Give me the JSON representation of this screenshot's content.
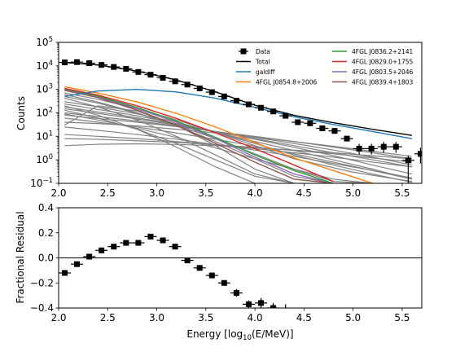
{
  "chart_data": [
    {
      "type": "line",
      "title": "",
      "ylabel": "Counts",
      "xlabel": "",
      "yscale": "log",
      "xlim": [
        2.0,
        5.7
      ],
      "ylim": [
        0.1,
        100000
      ],
      "xticks": [
        "2.0",
        "2.5",
        "3.0",
        "3.5",
        "4.0",
        "4.5",
        "5.0",
        "5.5"
      ],
      "xtick_values": [
        2.0,
        2.5,
        3.0,
        3.5,
        4.0,
        4.5,
        5.0,
        5.5
      ],
      "yticks": [
        {
          "value": 0.1,
          "base": "10",
          "exp": "−1"
        },
        {
          "value": 1,
          "base": "10",
          "exp": "0"
        },
        {
          "value": 10,
          "base": "10",
          "exp": "1"
        },
        {
          "value": 100,
          "base": "10",
          "exp": "2"
        },
        {
          "value": 1000,
          "base": "10",
          "exp": "3"
        },
        {
          "value": 10000,
          "base": "10",
          "exp": "4"
        },
        {
          "value": 100000,
          "base": "10",
          "exp": "5"
        }
      ],
      "legend_position": "top-right",
      "legend_columns": [
        [
          "Data",
          "Total",
          "galdiff",
          "4FGL J0854.8+2006"
        ],
        [
          "4FGL J0836.2+2141",
          "4FGL J0829.0+1755",
          "4FGL J0803.5+2046",
          "4FGL J0839.4+1803"
        ]
      ],
      "colors": {
        "Data": "#000000",
        "Total": "#000000",
        "galdiff": "#1f77b4",
        "4FGL J0854.8+2006": "#ff7f0e",
        "4FGL J0836.2+2141": "#2ca02c",
        "4FGL J0829.0+1755": "#d62728",
        "4FGL J0803.5+2046": "#9467bd",
        "4FGL J0839.4+1803": "#8c564b",
        "other_sources": "#808080"
      },
      "data_points": {
        "x": [
          2.062,
          2.187,
          2.312,
          2.437,
          2.562,
          2.687,
          2.812,
          2.937,
          3.062,
          3.187,
          3.312,
          3.437,
          3.562,
          3.687,
          3.812,
          3.937,
          4.062,
          4.187,
          4.312,
          4.437,
          4.562,
          4.687,
          4.812,
          4.937,
          5.062,
          5.187,
          5.312,
          5.437,
          5.562,
          5.687
        ],
        "y": [
          14000,
          14500,
          13000,
          11000,
          9000,
          7500,
          5500,
          4200,
          3100,
          2200,
          1600,
          1100,
          760,
          500,
          330,
          230,
          165,
          115,
          75,
          40,
          36,
          22,
          17,
          8,
          3.0,
          3.0,
          3.6,
          3.6,
          0.95,
          1.8
        ],
        "yerr_low": [
          0,
          0,
          0,
          0,
          0,
          0,
          0,
          0,
          0,
          0,
          0,
          0,
          0,
          0,
          0,
          0,
          0,
          0,
          0,
          0,
          0,
          0,
          0,
          0,
          1.3,
          1.3,
          1.6,
          1.6,
          0.85,
          1.1
        ],
        "yerr_high": [
          0,
          0,
          0,
          0,
          0,
          0,
          0,
          0,
          0,
          0,
          0,
          0,
          0,
          0,
          0,
          0,
          0,
          0,
          0,
          0,
          0,
          0,
          0,
          0,
          1.8,
          1.8,
          2.2,
          2.2,
          0.6,
          1.5
        ],
        "x_halfwidth": 0.0625
      },
      "curves": [
        {
          "name": "Total",
          "x": [
            2.06,
            2.4,
            2.8,
            3.2,
            3.6,
            4.0,
            4.4,
            4.8,
            5.2,
            5.6
          ],
          "y": [
            14000,
            11000,
            6000,
            2500,
            780,
            210,
            78,
            38,
            20,
            11
          ]
        },
        {
          "name": "galdiff",
          "x": [
            2.06,
            2.4,
            2.8,
            3.2,
            3.6,
            4.0,
            4.4,
            4.8,
            5.2,
            5.6
          ],
          "y": [
            500,
            850,
            1000,
            780,
            420,
            170,
            68,
            32,
            16,
            8
          ]
        },
        {
          "name": "4FGL J0854.8+2006",
          "x": [
            2.06,
            2.4,
            2.8,
            3.2,
            3.6,
            4.0,
            4.4,
            4.8,
            5.2
          ],
          "y": [
            1300,
            700,
            290,
            95,
            25,
            5.5,
            1.2,
            0.35,
            0.1
          ]
        },
        {
          "name": "4FGL J0836.2+2141",
          "x": [
            2.06,
            2.4,
            2.8,
            3.2,
            3.6,
            4.0,
            4.4,
            4.8
          ],
          "y": [
            1050,
            520,
            170,
            45,
            9,
            1.6,
            0.35,
            0.1
          ]
        },
        {
          "name": "4FGL J0829.0+1755",
          "x": [
            2.06,
            2.4,
            2.8,
            3.2,
            3.6,
            4.0,
            4.4,
            4.8
          ],
          "y": [
            1100,
            570,
            200,
            58,
            14,
            3,
            0.6,
            0.12
          ]
        },
        {
          "name": "4FGL J0803.5+2046",
          "x": [
            2.06,
            2.4,
            2.8,
            3.2,
            3.6,
            4.0,
            4.4,
            4.8
          ],
          "y": [
            1000,
            500,
            150,
            40,
            8,
            1.3,
            0.25,
            0.1
          ]
        },
        {
          "name": "4FGL J0839.4+1803",
          "x": [
            2.06,
            2.4,
            2.8,
            3.2,
            3.6,
            4.0,
            4.4,
            4.8
          ],
          "y": [
            900,
            450,
            130,
            30,
            5,
            0.8,
            0.15,
            0.1
          ]
        }
      ],
      "other_sources": [
        {
          "x": [
            2.06,
            2.4,
            2.8,
            3.2,
            3.6,
            4.0,
            4.4,
            5.0,
            5.6
          ],
          "y": [
            700,
            380,
            150,
            50,
            15,
            4,
            1.1,
            0.3,
            0.12
          ]
        },
        {
          "x": [
            2.06,
            2.4,
            2.8,
            3.2,
            3.6,
            4.0,
            4.4,
            4.8
          ],
          "y": [
            600,
            290,
            100,
            28,
            6,
            1.1,
            0.2,
            0.1
          ]
        },
        {
          "x": [
            2.06,
            2.4,
            2.8,
            3.2,
            3.6,
            4.0,
            4.4,
            4.8,
            5.2
          ],
          "y": [
            500,
            260,
            95,
            30,
            8,
            1.8,
            0.4,
            0.12,
            0.1
          ]
        },
        {
          "x": [
            2.06,
            2.4,
            2.8,
            3.2,
            3.6,
            4.0,
            4.4
          ],
          "y": [
            420,
            180,
            50,
            10,
            1.6,
            0.25,
            0.1
          ]
        },
        {
          "x": [
            2.06,
            2.4,
            2.8,
            3.2,
            3.6,
            4.0,
            4.4,
            4.8,
            5.2,
            5.6
          ],
          "y": [
            300,
            180,
            90,
            40,
            15,
            5,
            1.6,
            0.6,
            0.25,
            0.11
          ]
        },
        {
          "x": [
            2.06,
            2.4,
            2.8,
            3.2,
            3.6,
            4.0,
            4.4,
            4.8,
            5.2,
            5.6
          ],
          "y": [
            240,
            140,
            75,
            35,
            15,
            6,
            2.5,
            1.0,
            0.4,
            0.15
          ]
        },
        {
          "x": [
            2.06,
            2.4,
            2.8,
            3.2,
            3.6,
            4.0
          ],
          "y": [
            200,
            80,
            20,
            3.5,
            0.5,
            0.1
          ]
        },
        {
          "x": [
            2.06,
            2.4,
            2.8,
            3.2,
            3.6,
            4.0,
            4.4,
            4.8,
            5.2,
            5.6
          ],
          "y": [
            180,
            110,
            62,
            32,
            16,
            7.5,
            3.4,
            1.5,
            0.6,
            0.25
          ]
        },
        {
          "x": [
            2.06,
            2.4,
            2.8,
            3.2,
            3.6,
            4.0,
            4.4,
            4.8,
            5.2,
            5.6
          ],
          "y": [
            150,
            95,
            55,
            30,
            16,
            8,
            4,
            2,
            1,
            0.5
          ]
        },
        {
          "x": [
            2.06,
            2.4,
            2.8,
            3.2,
            3.6,
            4.0,
            4.4
          ],
          "y": [
            130,
            60,
            20,
            5,
            1,
            0.2,
            0.1
          ]
        },
        {
          "x": [
            2.06,
            2.4,
            2.8,
            3.2,
            3.6,
            4.0,
            4.4,
            4.8,
            5.2,
            5.6
          ],
          "y": [
            100,
            70,
            45,
            28,
            16,
            9,
            5,
            2.6,
            1.3,
            0.6
          ]
        },
        {
          "x": [
            2.06,
            2.4,
            2.8,
            3.2,
            3.6,
            4.0,
            4.4,
            4.8,
            5.2
          ],
          "y": [
            90,
            50,
            22,
            9,
            3.2,
            1.1,
            0.4,
            0.15,
            0.1
          ]
        },
        {
          "x": [
            2.06,
            2.4,
            2.8,
            3.2,
            3.6,
            4.0,
            4.4,
            4.8,
            5.2,
            5.6
          ],
          "y": [
            80,
            58,
            40,
            26,
            16,
            10,
            6,
            3.5,
            2,
            1.1
          ]
        },
        {
          "x": [
            2.06,
            2.4,
            2.8,
            3.2,
            3.6,
            4.0,
            4.4,
            4.8,
            5.2,
            5.6
          ],
          "y": [
            60,
            40,
            25,
            14,
            7.5,
            3.8,
            1.8,
            0.8,
            0.35,
            0.15
          ]
        },
        {
          "x": [
            2.06,
            2.4,
            2.8,
            3.2,
            3.6,
            4.0,
            4.4,
            4.8,
            5.2,
            5.6
          ],
          "y": [
            40,
            35,
            28,
            20,
            14,
            9.5,
            6,
            3.8,
            2.3,
            1.4
          ]
        },
        {
          "x": [
            2.06,
            2.4,
            2.8,
            3.2,
            3.6,
            4.0,
            4.4
          ],
          "y": [
            30,
            200,
            120,
            30,
            4,
            0.4,
            0.1
          ]
        },
        {
          "x": [
            2.06,
            2.4,
            2.8,
            3.2,
            3.6,
            4.0,
            4.4,
            4.8,
            5.2,
            5.6
          ],
          "y": [
            25,
            18,
            12,
            7.5,
            4.5,
            2.6,
            1.4,
            0.7,
            0.35,
            0.17
          ]
        },
        {
          "x": [
            2.06,
            2.4,
            2.8,
            3.2,
            3.6,
            4.0,
            4.4,
            4.8,
            5.2,
            5.6
          ],
          "y": [
            12,
            10,
            8,
            6,
            4.3,
            3,
            2,
            1.3,
            0.8,
            0.5
          ]
        },
        {
          "x": [
            2.06,
            2.4,
            2.8,
            3.2,
            3.6,
            4.0,
            4.4,
            4.8,
            5.2,
            5.6
          ],
          "y": [
            8,
            7.5,
            6.5,
            5.5,
            4.4,
            3.4,
            2.5,
            1.8,
            1.2,
            0.8
          ]
        },
        {
          "x": [
            2.06,
            2.4,
            2.8,
            3.2,
            3.6,
            4.0,
            4.4,
            4.8,
            5.2,
            5.6
          ],
          "y": [
            4,
            4.6,
            4.8,
            4.5,
            4,
            3.3,
            2.6,
            2,
            1.5,
            1.1
          ]
        }
      ]
    },
    {
      "type": "scatter",
      "title": "",
      "xlabel": "Energy [log",
      "xlabel_sub": "10",
      "xlabel_tail": "(E/MeV)]",
      "ylabel": "Fractional Residual",
      "xlim": [
        2.0,
        5.7
      ],
      "ylim": [
        -0.4,
        0.4
      ],
      "xticks": [
        "2.0",
        "2.5",
        "3.0",
        "3.5",
        "4.0",
        "4.5",
        "5.0",
        "5.5"
      ],
      "xtick_values": [
        2.0,
        2.5,
        3.0,
        3.5,
        4.0,
        4.5,
        5.0,
        5.5
      ],
      "yticks": [
        "−0.4",
        "−0.2",
        "0.0",
        "0.2",
        "0.4"
      ],
      "ytick_values": [
        -0.4,
        -0.2,
        0.0,
        0.2,
        0.4
      ],
      "zero_line": 0.0,
      "x": [
        2.062,
        2.187,
        2.312,
        2.437,
        2.562,
        2.687,
        2.812,
        2.937,
        3.062,
        3.187,
        3.312,
        3.437,
        3.562,
        3.687,
        3.812,
        3.937,
        4.062,
        4.187,
        4.312
      ],
      "y": [
        -0.12,
        -0.05,
        0.01,
        0.06,
        0.09,
        0.12,
        0.12,
        0.17,
        0.14,
        0.09,
        -0.02,
        -0.08,
        -0.14,
        -0.2,
        -0.28,
        -0.37,
        -0.36,
        -0.4,
        -0.42
      ],
      "yerr": [
        0,
        0,
        0,
        0,
        0,
        0,
        0,
        0,
        0,
        0,
        0,
        0,
        0,
        0.02,
        0.03,
        0.03,
        0.04,
        0.04,
        0.05
      ],
      "x_halfwidth": 0.0625
    }
  ]
}
